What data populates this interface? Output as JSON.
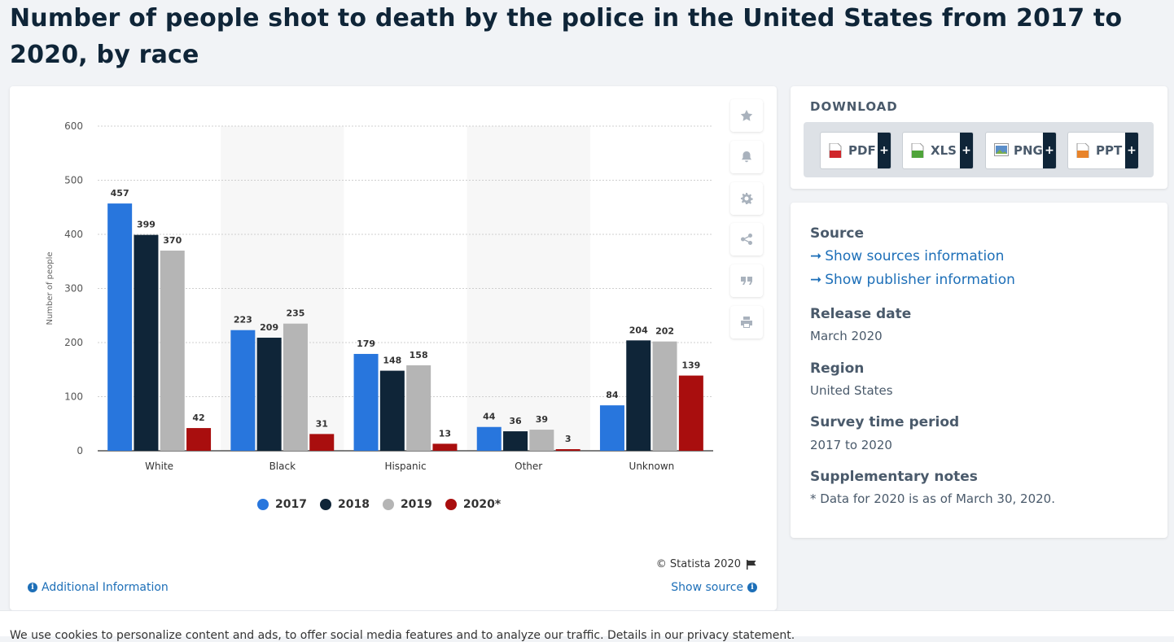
{
  "page": {
    "title": "Number of people shot to death by the police in the United States from 2017 to 2020, by race"
  },
  "tools": [
    "star-icon",
    "bell-icon",
    "gear-icon",
    "share-icon",
    "quote-icon",
    "print-icon"
  ],
  "chart_data": {
    "type": "bar",
    "categories": [
      "White",
      "Black",
      "Hispanic",
      "Other",
      "Unknown"
    ],
    "series": [
      {
        "name": "2017",
        "color": "#2876dd",
        "values": [
          457,
          223,
          179,
          44,
          84
        ]
      },
      {
        "name": "2018",
        "color": "#0f2538",
        "values": [
          399,
          209,
          148,
          36,
          204
        ]
      },
      {
        "name": "2019",
        "color": "#b5b5b5",
        "values": [
          370,
          235,
          158,
          39,
          202
        ]
      },
      {
        "name": "2020*",
        "color": "#a90e0e",
        "values": [
          42,
          31,
          13,
          3,
          139
        ]
      }
    ],
    "ylabel": "Number of people",
    "ylim": [
      0,
      600
    ],
    "yticks": [
      0,
      100,
      200,
      300,
      400,
      500,
      600
    ],
    "grid": true,
    "legend": "bottom"
  },
  "chart_footer": {
    "copyright": "© Statista 2020",
    "additional_info": "Additional Information",
    "show_source": "Show source"
  },
  "download": {
    "title": "DOWNLOAD",
    "formats": [
      {
        "label": "PDF",
        "icon": "pdf-file-icon",
        "color": "#d0262b"
      },
      {
        "label": "XLS",
        "icon": "xls-file-icon",
        "color": "#4fa43a"
      },
      {
        "label": "PNG",
        "icon": "png-file-icon",
        "color": "#5b8ec9"
      },
      {
        "label": "PPT",
        "icon": "ppt-file-icon",
        "color": "#e8832a"
      }
    ],
    "plus": "+"
  },
  "meta": {
    "source_heading": "Source",
    "show_sources": "Show sources information",
    "show_publisher": "Show publisher information",
    "release_heading": "Release date",
    "release_value": "March 2020",
    "region_heading": "Region",
    "region_value": "United States",
    "survey_heading": "Survey time period",
    "survey_value": "2017 to 2020",
    "notes_heading": "Supplementary notes",
    "notes_value": "* Data for 2020 is as of March 30, 2020."
  },
  "cookie": {
    "text": "We use cookies to personalize content and ads, to offer social media features and to analyze our traffic. Details in our privacy statement."
  }
}
